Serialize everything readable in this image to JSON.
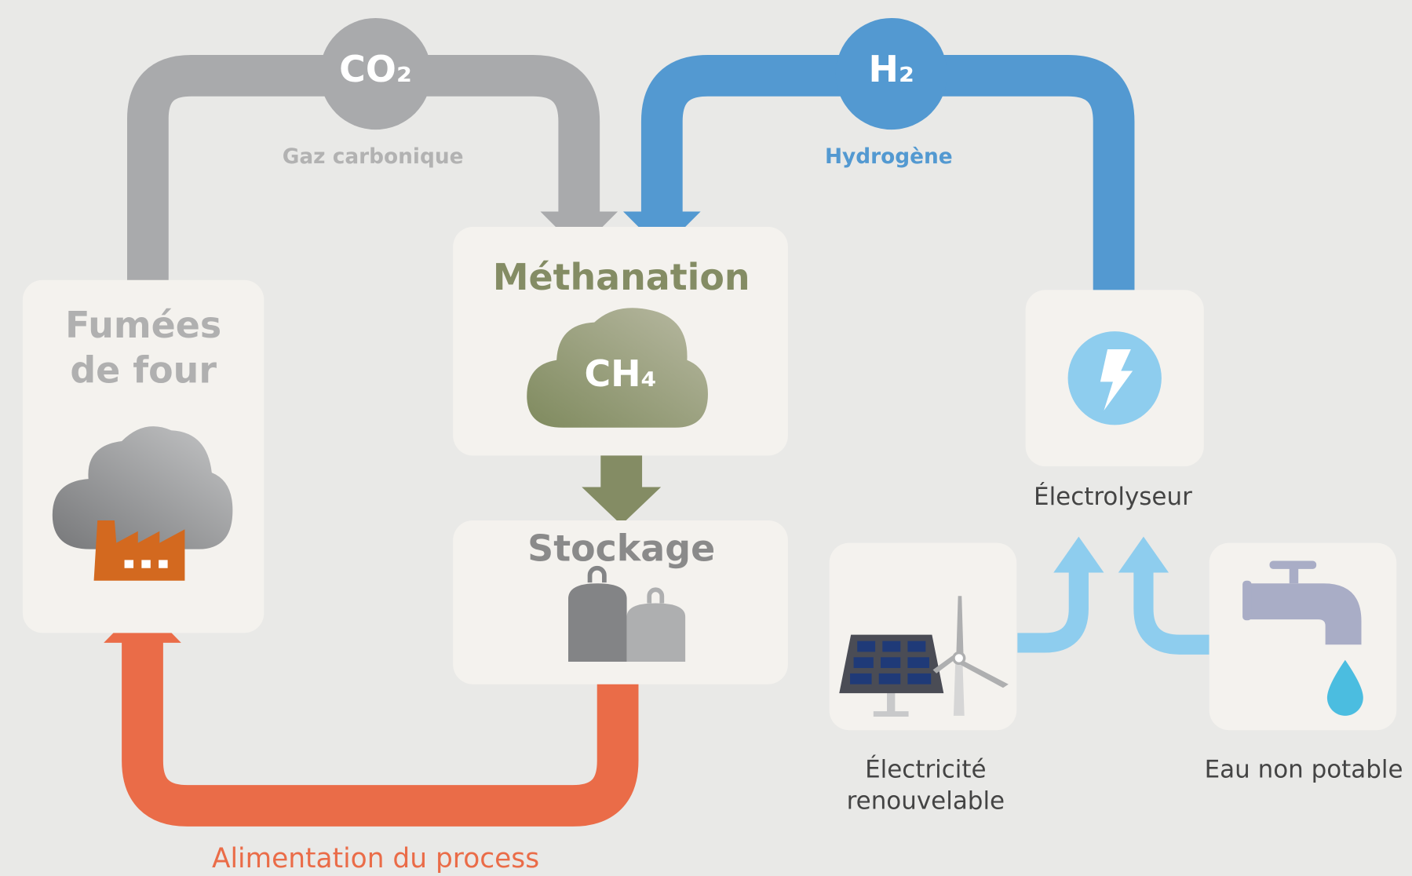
{
  "flows": [
    {
      "symbol": "CO₂",
      "label": "Gaz carbonique"
    },
    {
      "symbol": "H₂",
      "label": "Hydrogène"
    },
    {
      "label": "Alimentation du process"
    }
  ],
  "nodes": [
    {
      "title_lines": [
        "Fumées",
        "de four"
      ]
    },
    {
      "title": "Méthanation",
      "symbol": "CH₄"
    },
    {
      "title": "Stockage"
    },
    {
      "label": "Électrolyseur"
    },
    {
      "label_lines": [
        "Électricité",
        "renouvelable"
      ]
    },
    {
      "label": "Eau non potable"
    }
  ]
}
